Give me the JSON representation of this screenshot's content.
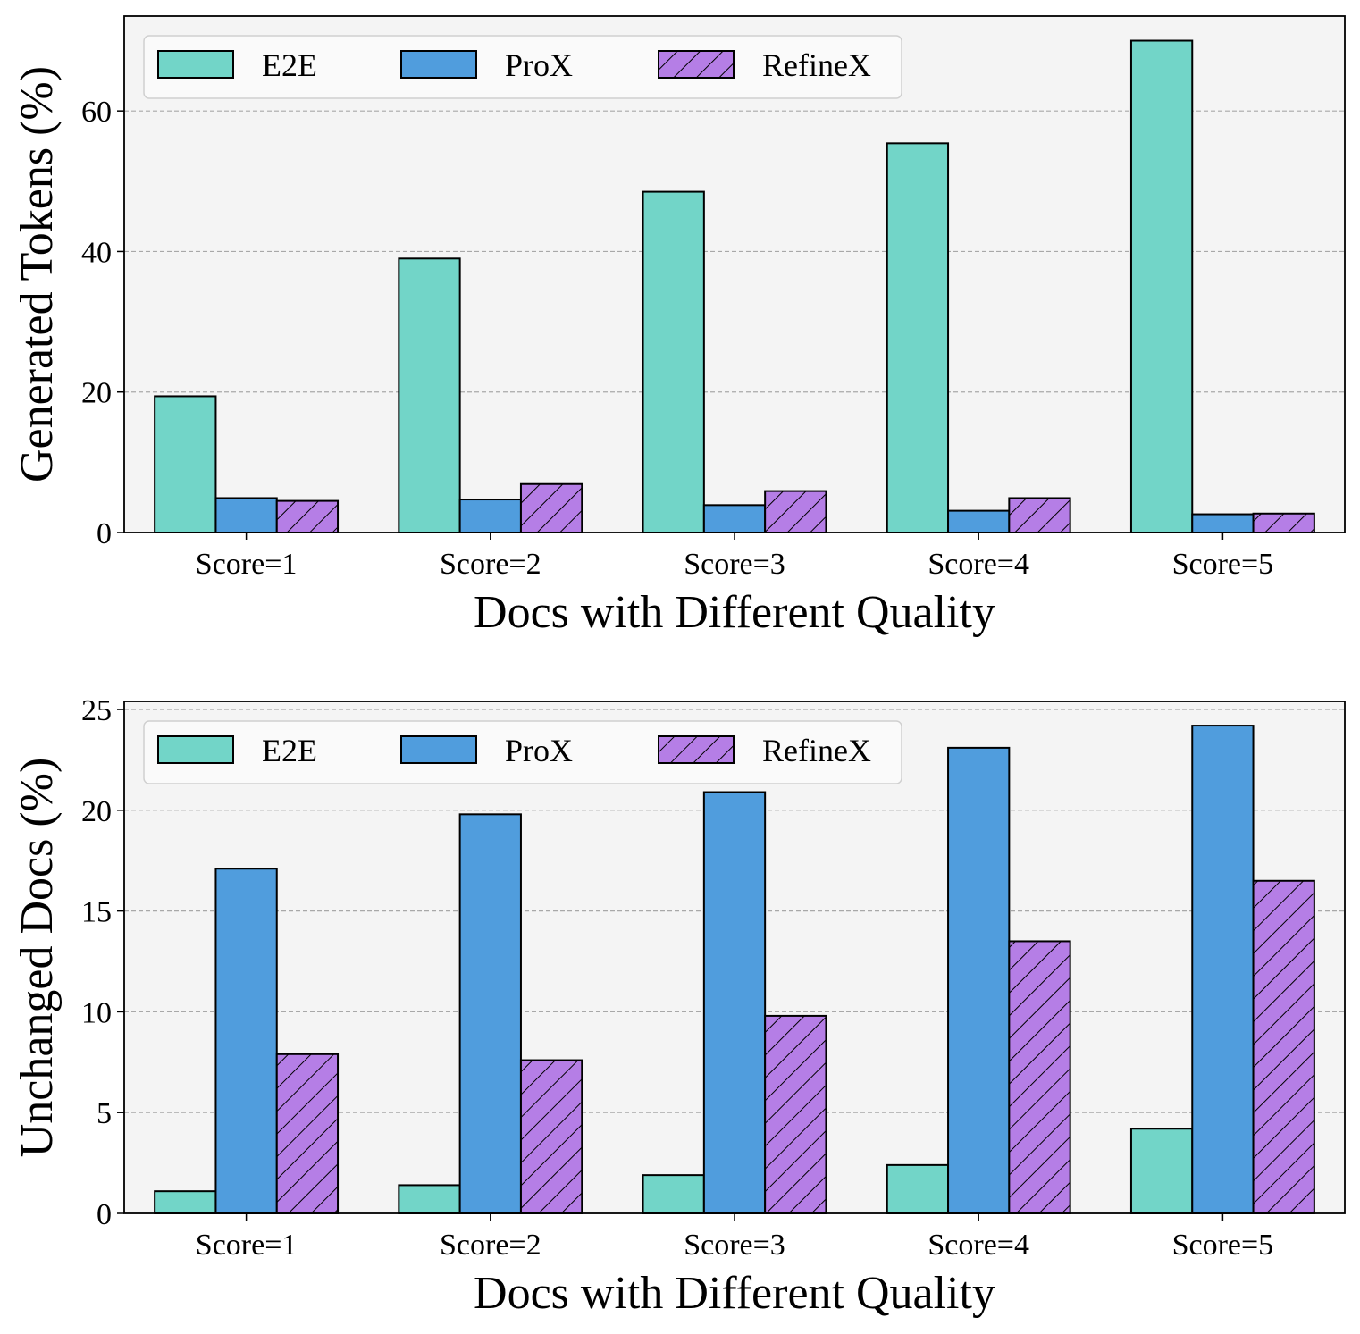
{
  "chart_data": [
    {
      "type": "bar",
      "title": "",
      "xlabel": "Docs with Different Quality",
      "ylabel": "Generated Tokens (%)",
      "categories": [
        "Score=1",
        "Score=2",
        "Score=3",
        "Score=4",
        "Score=5"
      ],
      "series": [
        {
          "name": "E2E",
          "color": "#72d5c8",
          "hatch": false,
          "values": [
            19.4,
            39.0,
            48.5,
            55.4,
            70.0
          ]
        },
        {
          "name": "ProX",
          "color": "#509ddd",
          "hatch": false,
          "values": [
            4.9,
            4.7,
            3.9,
            3.1,
            2.6
          ]
        },
        {
          "name": "RefineX",
          "color": "#b57ee6",
          "hatch": true,
          "values": [
            4.5,
            6.9,
            5.9,
            4.9,
            2.7
          ]
        }
      ],
      "ylim": [
        0,
        73.5
      ],
      "yticks": [
        0,
        20,
        40,
        60
      ],
      "grid": true,
      "legend": "top-left"
    },
    {
      "type": "bar",
      "title": "",
      "xlabel": "Docs with Different Quality",
      "ylabel": "Unchanged Docs (%)",
      "categories": [
        "Score=1",
        "Score=2",
        "Score=3",
        "Score=4",
        "Score=5"
      ],
      "series": [
        {
          "name": "E2E",
          "color": "#72d5c8",
          "hatch": false,
          "values": [
            1.1,
            1.4,
            1.9,
            2.4,
            4.2
          ]
        },
        {
          "name": "ProX",
          "color": "#509ddd",
          "hatch": false,
          "values": [
            17.1,
            19.8,
            20.9,
            23.1,
            24.2
          ]
        },
        {
          "name": "RefineX",
          "color": "#b57ee6",
          "hatch": true,
          "values": [
            7.9,
            7.6,
            9.8,
            13.5,
            16.5
          ]
        }
      ],
      "ylim": [
        0,
        25.4
      ],
      "yticks": [
        0,
        5,
        10,
        15,
        20,
        25
      ],
      "grid": true,
      "legend": "top-left"
    }
  ]
}
